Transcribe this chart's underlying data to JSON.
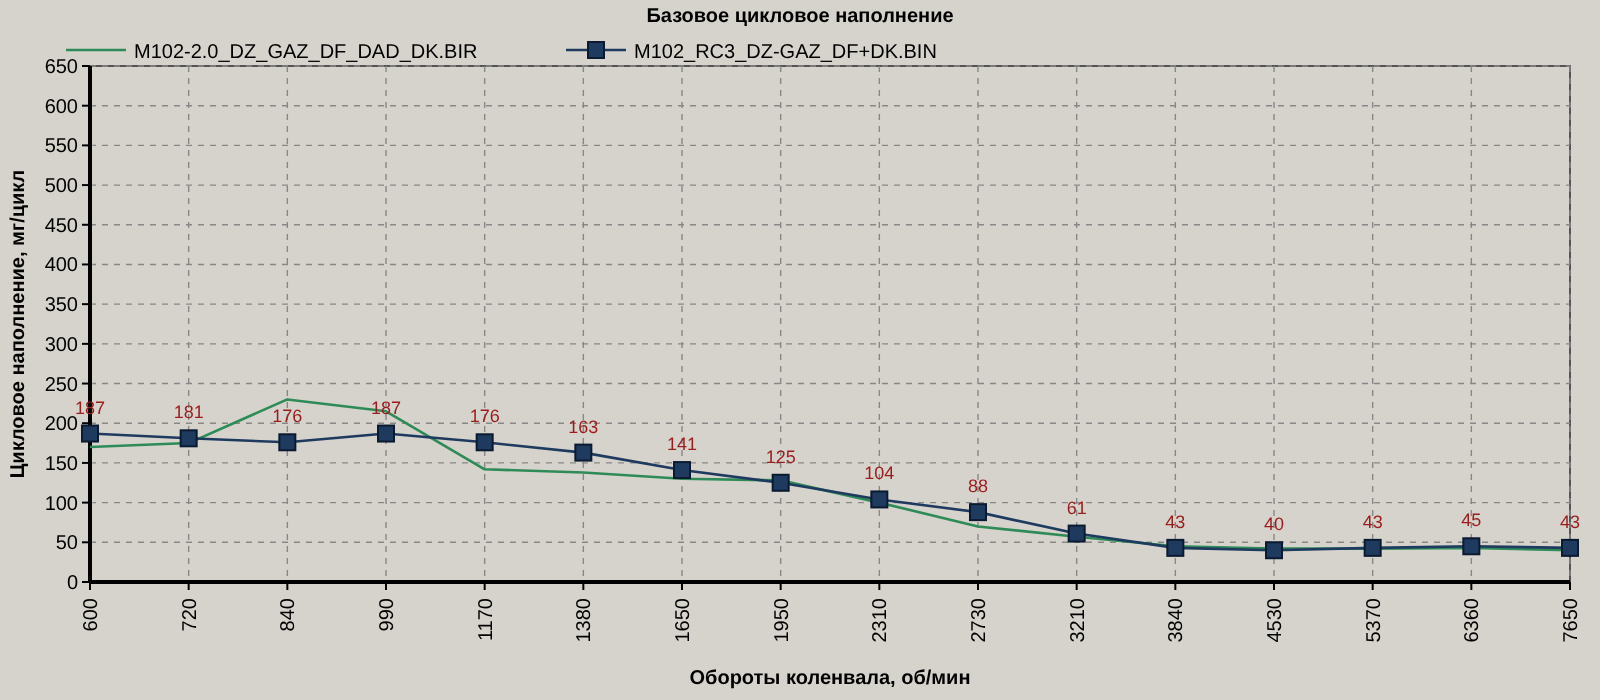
{
  "chart_data": {
    "type": "line",
    "title": "Базовое цикловое наполнение",
    "xlabel": "Обороты коленвала, об/мин",
    "ylabel": "Цикловое наполнение, мг/цикл",
    "categories": [
      "600",
      "720",
      "840",
      "990",
      "1170",
      "1380",
      "1650",
      "1950",
      "2310",
      "2730",
      "3210",
      "3840",
      "4530",
      "5370",
      "6360",
      "7650"
    ],
    "series": [
      {
        "name": "M102-2.0_DZ_GAZ_DF_DAD_DK.BIR",
        "color": "#2e8b57",
        "marker": "none",
        "values": [
          170,
          175,
          230,
          215,
          142,
          138,
          130,
          128,
          100,
          70,
          57,
          45,
          42,
          42,
          43,
          40
        ]
      },
      {
        "name": "M102_RC3_DZ-GAZ_DF+DK.BIN",
        "color": "#1f3a5f",
        "marker": "square",
        "data_labels": true,
        "values": [
          187,
          181,
          176,
          187,
          176,
          163,
          141,
          125,
          104,
          88,
          61,
          43,
          40,
          43,
          45,
          43
        ]
      }
    ],
    "ylim": [
      0,
      650
    ],
    "yticks": [
      0,
      50,
      100,
      150,
      200,
      250,
      300,
      350,
      400,
      450,
      500,
      550,
      600,
      650
    ],
    "grid": true,
    "legend": "top left",
    "line_style": "solid"
  }
}
